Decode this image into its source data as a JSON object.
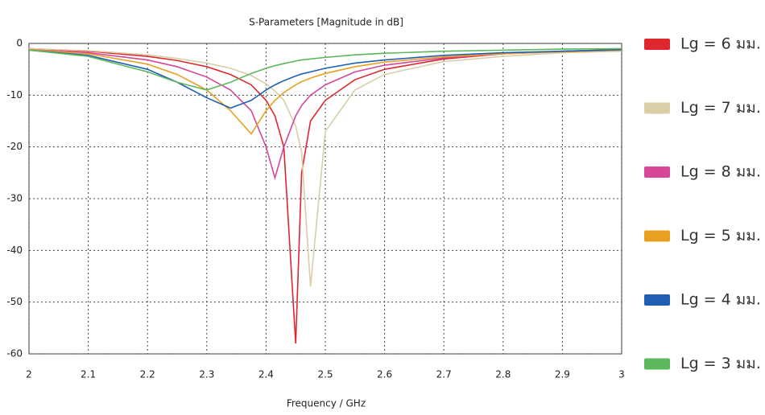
{
  "chart_data": {
    "type": "line",
    "title": "S-Parameters [Magnitude in dB]",
    "x_label": "Frequency / GHz",
    "x": [
      2.0,
      2.1,
      2.2,
      2.25,
      2.3,
      2.34,
      2.375,
      2.4,
      2.415,
      2.43,
      2.45,
      2.46,
      2.475,
      2.5,
      2.55,
      2.6,
      2.7,
      2.8,
      2.9,
      3.0
    ],
    "series": [
      {
        "name": "Lg = 6 มม.",
        "color": "#e0262e",
        "values": [
          -1,
          -1.5,
          -2.5,
          -3.3,
          -4.5,
          -6,
          -8,
          -11,
          -14,
          -20,
          -58,
          -25,
          -15,
          -11,
          -7,
          -5,
          -3,
          -2,
          -1.5,
          -1.2
        ]
      },
      {
        "name": "Lg = 7 มม.",
        "color": "#d8cfa8",
        "values": [
          -1,
          -1.4,
          -2.2,
          -2.9,
          -3.8,
          -4.8,
          -6.2,
          -7.8,
          -9.2,
          -11,
          -16,
          -21,
          -47,
          -17,
          -9,
          -6,
          -3.5,
          -2.5,
          -1.8,
          -1.5
        ]
      },
      {
        "name": "Lg = 8 มม.",
        "color": "#d6469a",
        "values": [
          -1.2,
          -1.8,
          -3.2,
          -4.5,
          -6.5,
          -9,
          -13,
          -20,
          -26,
          -20,
          -14,
          -12,
          -10,
          -8,
          -5.5,
          -4.2,
          -2.8,
          -2,
          -1.6,
          -1.3
        ]
      },
      {
        "name": "Lg = 5 มม.",
        "color": "#e8a020",
        "values": [
          -1.2,
          -2,
          -4,
          -6,
          -9,
          -13,
          -17.5,
          -13,
          -11,
          -9.5,
          -8,
          -7.4,
          -6.7,
          -5.8,
          -4.5,
          -3.6,
          -2.6,
          -2,
          -1.6,
          -1.3
        ]
      },
      {
        "name": "Lg = 4 มม.",
        "color": "#1f5fb4",
        "values": [
          -1.3,
          -2.3,
          -5,
          -7.5,
          -10.5,
          -12.5,
          -11,
          -9,
          -8,
          -7.2,
          -6.3,
          -5.9,
          -5.5,
          -4.8,
          -3.8,
          -3.2,
          -2.3,
          -1.8,
          -1.5,
          -1.2
        ]
      },
      {
        "name": "Lg = 3 มม.",
        "color": "#5cb85c",
        "values": [
          -1.3,
          -2.5,
          -5.5,
          -7.5,
          -9,
          -7.5,
          -5.8,
          -4.8,
          -4.3,
          -3.9,
          -3.4,
          -3.2,
          -3,
          -2.7,
          -2.2,
          -1.9,
          -1.5,
          -1.3,
          -1.1,
          -1
        ]
      }
    ],
    "xlim": [
      2,
      3
    ],
    "xticks": [
      2,
      2.1,
      2.2,
      2.3,
      2.4,
      2.5,
      2.6,
      2.7,
      2.8,
      2.9,
      3
    ],
    "ylim": [
      -60,
      0
    ],
    "yticks": [
      0,
      -10,
      -20,
      -30,
      -40,
      -50,
      -60
    ],
    "grid": true,
    "legend": "right"
  }
}
